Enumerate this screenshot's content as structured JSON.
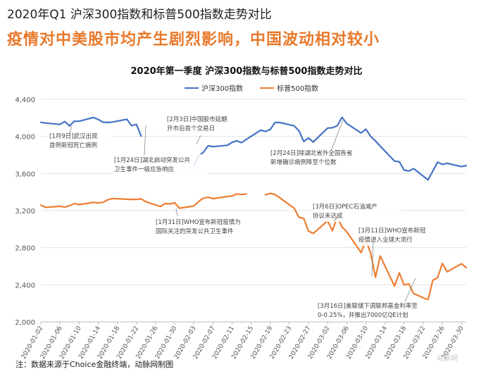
{
  "header": {
    "title": "2020年Q1 沪深300指数和标普500指数走势对比",
    "subtitle": "疫情对中美股市均产生剧烈影响，中国波动相对较小"
  },
  "footer": {
    "note": "注：数据来源于Choice金融终端，动脉网制图"
  },
  "watermark": {
    "text": "动脉网"
  },
  "colors": {
    "csi300": "#4472c4",
    "sp500": "#ed7d31",
    "grid": "#e3e3e3"
  },
  "chart_data": {
    "type": "line",
    "title": "2020年第一季度 沪深300指数与标普500指数走势对比",
    "legend_position": "top-center",
    "grid": true,
    "ylim": [
      2000,
      4400
    ],
    "yticks": [
      2000,
      2400,
      2800,
      3200,
      3600,
      4000,
      4400
    ],
    "ytick_labels": [
      "2,000",
      "2,400",
      "2,800",
      "3,200",
      "3,600",
      "4,000",
      "4,400"
    ],
    "x_start": "2020-01-02",
    "x_end": "2020-03-31",
    "xtick_labels": [
      "2020-01-02",
      "2020-01-06",
      "2020-01-10",
      "2020-01-14",
      "2020-01-18",
      "2020-01-22",
      "2020-01-26",
      "2020-01-30",
      "2020-02-03",
      "2020-02-07",
      "2020-02-11",
      "2020-02-15",
      "2020-02-19",
      "2020-02-23",
      "2020-02-27",
      "2020-03-02",
      "2020-03-06",
      "2020-03-10",
      "2020-03-14",
      "2020-03-18",
      "2020-03-22",
      "2020-03-26",
      "2020-03-30"
    ],
    "series": [
      {
        "name": "沪深300指数",
        "x": [
          "2020-01-02",
          "2020-01-03",
          "2020-01-06",
          "2020-01-07",
          "2020-01-08",
          "2020-01-09",
          "2020-01-10",
          "2020-01-13",
          "2020-01-14",
          "2020-01-15",
          "2020-01-16",
          "2020-01-17",
          "2020-01-20",
          "2020-01-21",
          "2020-01-22",
          "2020-01-23",
          null,
          "2020-02-03",
          "2020-02-04",
          "2020-02-05",
          "2020-02-06",
          "2020-02-07",
          "2020-02-10",
          "2020-02-11",
          "2020-02-12",
          "2020-02-13",
          "2020-02-14",
          "2020-02-17",
          "2020-02-18",
          "2020-02-19",
          "2020-02-20",
          "2020-02-21",
          "2020-02-24",
          "2020-02-25",
          "2020-02-26",
          "2020-02-27",
          "2020-02-28",
          "2020-03-02",
          "2020-03-03",
          "2020-03-04",
          "2020-03-05",
          "2020-03-06",
          "2020-03-09",
          "2020-03-10",
          "2020-03-11",
          "2020-03-12",
          "2020-03-13",
          "2020-03-16",
          "2020-03-17",
          "2020-03-18",
          "2020-03-19",
          "2020-03-20",
          "2020-03-23",
          "2020-03-24",
          "2020-03-25",
          "2020-03-26",
          "2020-03-27",
          "2020-03-30",
          "2020-03-31"
        ],
        "values": [
          4152,
          4144,
          4129,
          4161,
          4113,
          4164,
          4163,
          4204,
          4183,
          4153,
          4150,
          4155,
          4185,
          4115,
          4130,
          4003,
          null,
          3688,
          3788,
          3828,
          3899,
          3890,
          3904,
          3935,
          3953,
          3932,
          3968,
          4067,
          4054,
          4075,
          4149,
          4150,
          4114,
          4061,
          3945,
          3983,
          3940,
          4090,
          4093,
          4115,
          4206,
          4139,
          4037,
          4078,
          4001,
          3951,
          3896,
          3733,
          3727,
          3637,
          3627,
          3653,
          3531,
          3626,
          3722,
          3698,
          3710,
          3674,
          3686
        ]
      },
      {
        "name": "标普500指数",
        "x": [
          "2020-01-02",
          "2020-01-03",
          "2020-01-06",
          "2020-01-07",
          "2020-01-08",
          "2020-01-09",
          "2020-01-10",
          "2020-01-13",
          "2020-01-14",
          "2020-01-15",
          "2020-01-16",
          "2020-01-17",
          "2020-01-21",
          "2020-01-22",
          "2020-01-23",
          "2020-01-24",
          "2020-01-27",
          "2020-01-28",
          "2020-01-29",
          "2020-01-30",
          "2020-01-31",
          "2020-02-03",
          "2020-02-04",
          "2020-02-05",
          "2020-02-06",
          "2020-02-07",
          "2020-02-10",
          "2020-02-11",
          "2020-02-12",
          "2020-02-13",
          "2020-02-14",
          null,
          "2020-02-18",
          "2020-02-19",
          "2020-02-20",
          "2020-02-21",
          "2020-02-24",
          "2020-02-25",
          "2020-02-26",
          "2020-02-27",
          "2020-02-28",
          "2020-03-02",
          "2020-03-03",
          "2020-03-04",
          "2020-03-05",
          "2020-03-06",
          "2020-03-09",
          "2020-03-10",
          "2020-03-11",
          "2020-03-12",
          "2020-03-13",
          "2020-03-16",
          "2020-03-17",
          "2020-03-18",
          "2020-03-19",
          "2020-03-20",
          "2020-03-23",
          "2020-03-24",
          "2020-03-25",
          "2020-03-26",
          "2020-03-27",
          "2020-03-30",
          "2020-03-31"
        ],
        "values": [
          3258,
          3235,
          3246,
          3237,
          3253,
          3275,
          3265,
          3288,
          3283,
          3289,
          3317,
          3330,
          3321,
          3321,
          3326,
          3295,
          3244,
          3276,
          3273,
          3284,
          3226,
          3249,
          3298,
          3334,
          3345,
          3328,
          3352,
          3358,
          3379,
          3373,
          3380,
          null,
          3370,
          3386,
          3373,
          3338,
          3226,
          3128,
          3116,
          2979,
          2954,
          3090,
          2982,
          3130,
          3024,
          2972,
          2747,
          2882,
          2741,
          2481,
          2711,
          2386,
          2529,
          2398,
          2409,
          2305,
          2237,
          2447,
          2476,
          2630,
          2541,
          2627,
          2585
        ]
      }
    ],
    "annotations": [
      {
        "lines": [
          "[1月9日]武汉出现",
          "首例新冠死亡病例"
        ]
      },
      {
        "lines": [
          "[1月24日]湖北启动突发公共",
          "卫生事件一级应急响应"
        ]
      },
      {
        "lines": [
          "[2月3日]中国股市延期",
          "开市后首个交易日"
        ]
      },
      {
        "lines": [
          "[2月24日]除湖北省外全国各省",
          "新增确诊病例降至个位数"
        ]
      },
      {
        "lines": [
          "[1月31日]WHO宣布新冠疫情为",
          "国际关注的突发公共卫生事件"
        ]
      },
      {
        "lines": [
          "[3月6日]OPEC石油减产",
          "协议未达成"
        ]
      },
      {
        "lines": [
          "[3月11日]WHO宣布新冠",
          "疫情进入全球大流行"
        ]
      },
      {
        "lines": [
          "[3月16日]美联储下调联邦基金利率至",
          "0-0.25%，并推出7000亿QE计划"
        ]
      }
    ]
  }
}
